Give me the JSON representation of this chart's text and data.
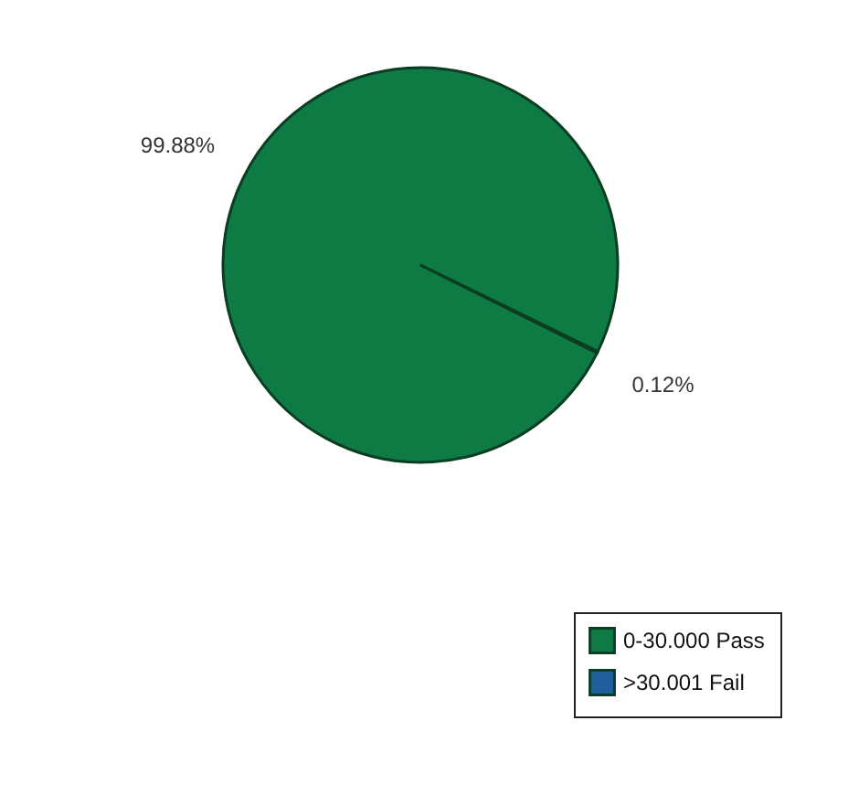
{
  "chart_data": {
    "type": "pie",
    "categories": [
      "0-30.000 Pass",
      ">30.001 Fail"
    ],
    "values": [
      99.88,
      0.12
    ],
    "colors": [
      "#0e7a44",
      "#1f5fa0"
    ],
    "value_labels": [
      "99.88%",
      "0.12%"
    ],
    "legend": "bottom right"
  }
}
